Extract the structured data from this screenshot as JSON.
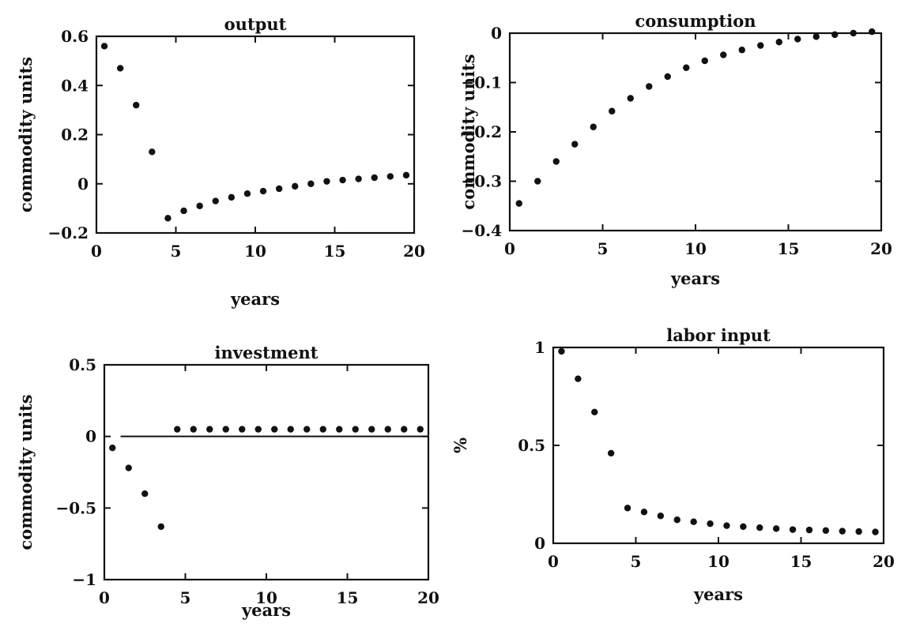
{
  "chart_data": [
    {
      "type": "scatter",
      "title": "output",
      "xlabel": "years",
      "ylabel": "commodity units",
      "xlim": [
        0,
        20
      ],
      "ylim": [
        -0.2,
        0.6
      ],
      "xticks": [
        "0",
        "5",
        "10",
        "15",
        "20"
      ],
      "yticks": [
        "-0.2",
        "0",
        "0.2",
        "0.4",
        "0.6"
      ],
      "zero_line": false,
      "grid": false,
      "series": [
        {
          "x": [
            0.5,
            1.5,
            2.5,
            3.5,
            4.5,
            5.5,
            6.5,
            7.5,
            8.5,
            9.5,
            10.5,
            11.5,
            12.5,
            13.5,
            14.5,
            15.5,
            16.5,
            17.5,
            18.5,
            19.5
          ],
          "y": [
            0.56,
            0.47,
            0.32,
            0.13,
            -0.14,
            -0.11,
            -0.09,
            -0.07,
            -0.055,
            -0.04,
            -0.03,
            -0.02,
            -0.01,
            0.0,
            0.01,
            0.015,
            0.02,
            0.025,
            0.03,
            0.035
          ]
        }
      ]
    },
    {
      "type": "scatter",
      "title": "consumption",
      "xlabel": "years",
      "ylabel": "commodity units",
      "xlim": [
        0,
        20
      ],
      "ylim": [
        -0.4,
        0
      ],
      "xticks": [
        "0",
        "5",
        "10",
        "15",
        "20"
      ],
      "yticks": [
        "-0.4",
        "-0.3",
        "-0.2",
        "-0.1",
        "0"
      ],
      "zero_line": false,
      "grid": false,
      "series": [
        {
          "x": [
            0.5,
            1.5,
            2.5,
            3.5,
            4.5,
            5.5,
            6.5,
            7.5,
            8.5,
            9.5,
            10.5,
            11.5,
            12.5,
            13.5,
            14.5,
            15.5,
            16.5,
            17.5,
            18.5,
            19.5
          ],
          "y": [
            -0.345,
            -0.3,
            -0.26,
            -0.225,
            -0.19,
            -0.158,
            -0.132,
            -0.108,
            -0.088,
            -0.07,
            -0.056,
            -0.044,
            -0.034,
            -0.025,
            -0.018,
            -0.012,
            -0.007,
            -0.003,
            0.0,
            0.003
          ]
        }
      ]
    },
    {
      "type": "scatter",
      "title": "investment",
      "xlabel": "years",
      "ylabel": "commodity units",
      "xlim": [
        0,
        20
      ],
      "ylim": [
        -1,
        0.5
      ],
      "xticks": [
        "0",
        "5",
        "10",
        "15",
        "20"
      ],
      "yticks": [
        "-1",
        "-0.5",
        "0",
        "0.5"
      ],
      "zero_line": true,
      "grid": false,
      "series": [
        {
          "x": [
            0.5,
            1.5,
            2.5,
            3.5,
            4.5,
            5.5,
            6.5,
            7.5,
            8.5,
            9.5,
            10.5,
            11.5,
            12.5,
            13.5,
            14.5,
            15.5,
            16.5,
            17.5,
            18.5,
            19.5
          ],
          "y": [
            -0.08,
            -0.22,
            -0.4,
            -0.63,
            0.05,
            0.05,
            0.05,
            0.05,
            0.05,
            0.05,
            0.05,
            0.05,
            0.05,
            0.05,
            0.05,
            0.05,
            0.05,
            0.05,
            0.05,
            0.05
          ]
        }
      ]
    },
    {
      "type": "scatter",
      "title": "labor input",
      "xlabel": "years",
      "ylabel": "%",
      "xlim": [
        0,
        20
      ],
      "ylim": [
        0,
        1
      ],
      "xticks": [
        "0",
        "5",
        "10",
        "15",
        "20"
      ],
      "yticks": [
        "0",
        "0.5",
        "1"
      ],
      "zero_line": false,
      "grid": false,
      "series": [
        {
          "x": [
            0.5,
            1.5,
            2.5,
            3.5,
            4.5,
            5.5,
            6.5,
            7.5,
            8.5,
            9.5,
            10.5,
            11.5,
            12.5,
            13.5,
            14.5,
            15.5,
            16.5,
            17.5,
            18.5,
            19.5
          ],
          "y": [
            0.98,
            0.84,
            0.67,
            0.46,
            0.18,
            0.16,
            0.14,
            0.12,
            0.11,
            0.1,
            0.09,
            0.085,
            0.08,
            0.075,
            0.07,
            0.068,
            0.065,
            0.062,
            0.06,
            0.058
          ]
        }
      ]
    }
  ]
}
